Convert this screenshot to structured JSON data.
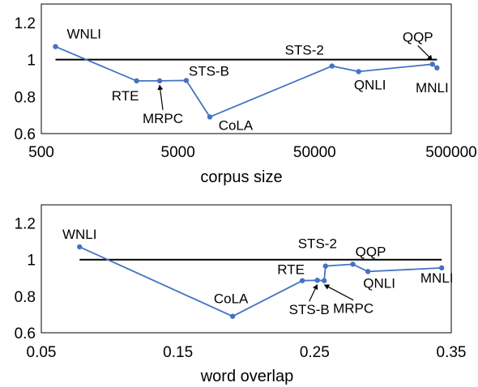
{
  "chart_data": [
    {
      "type": "line",
      "xlabel": "corpus size",
      "ylabel": "",
      "x_scale": "log",
      "xlim": [
        500,
        500000
      ],
      "ylim": [
        0.6,
        1.3
      ],
      "x_ticks": [
        {
          "value": 500,
          "label": "500"
        },
        {
          "value": 5000,
          "label": "5000"
        },
        {
          "value": 50000,
          "label": "50000"
        },
        {
          "value": 500000,
          "label": "500000"
        }
      ],
      "y_ticks": [
        {
          "value": 0.6,
          "label": "0.6"
        },
        {
          "value": 0.8,
          "label": "0.8"
        },
        {
          "value": 1.0,
          "label": "1"
        },
        {
          "value": 1.2,
          "label": "1.2"
        }
      ],
      "reference_line": 1.0,
      "points": [
        {
          "name": "WNLI",
          "x": 635,
          "y": 1.07
        },
        {
          "name": "RTE",
          "x": 2490,
          "y": 0.885
        },
        {
          "name": "MRPC",
          "x": 3670,
          "y": 0.885
        },
        {
          "name": "STS-B",
          "x": 5750,
          "y": 0.887
        },
        {
          "name": "CoLA",
          "x": 8550,
          "y": 0.69
        },
        {
          "name": "STS-2",
          "x": 67000,
          "y": 0.965
        },
        {
          "name": "QNLI",
          "x": 105000,
          "y": 0.935
        },
        {
          "name": "QQP",
          "x": 364000,
          "y": 0.975
        },
        {
          "name": "MNLI",
          "x": 393000,
          "y": 0.955
        }
      ]
    },
    {
      "type": "line",
      "xlabel": "word overlap",
      "ylabel": "",
      "x_scale": "linear",
      "xlim": [
        0.05,
        0.35
      ],
      "ylim": [
        0.6,
        1.3
      ],
      "x_ticks": [
        {
          "value": 0.05,
          "label": "0.05"
        },
        {
          "value": 0.15,
          "label": "0.15"
        },
        {
          "value": 0.25,
          "label": "0.25"
        },
        {
          "value": 0.35,
          "label": "0.35"
        }
      ],
      "y_ticks": [
        {
          "value": 0.6,
          "label": "0.6"
        },
        {
          "value": 0.8,
          "label": "0.8"
        },
        {
          "value": 1.0,
          "label": "1"
        },
        {
          "value": 1.2,
          "label": "1.2"
        }
      ],
      "reference_line": 1.0,
      "points": [
        {
          "name": "WNLI",
          "x": 0.078,
          "y": 1.07
        },
        {
          "name": "CoLA",
          "x": 0.19,
          "y": 0.69
        },
        {
          "name": "RTE",
          "x": 0.241,
          "y": 0.885
        },
        {
          "name": "STS-B",
          "x": 0.252,
          "y": 0.887
        },
        {
          "name": "MRPC",
          "x": 0.257,
          "y": 0.885
        },
        {
          "name": "STS-2",
          "x": 0.258,
          "y": 0.965
        },
        {
          "name": "QQP",
          "x": 0.278,
          "y": 0.975
        },
        {
          "name": "QNLI",
          "x": 0.289,
          "y": 0.935
        },
        {
          "name": "MNLI",
          "x": 0.343,
          "y": 0.955
        }
      ]
    }
  ]
}
